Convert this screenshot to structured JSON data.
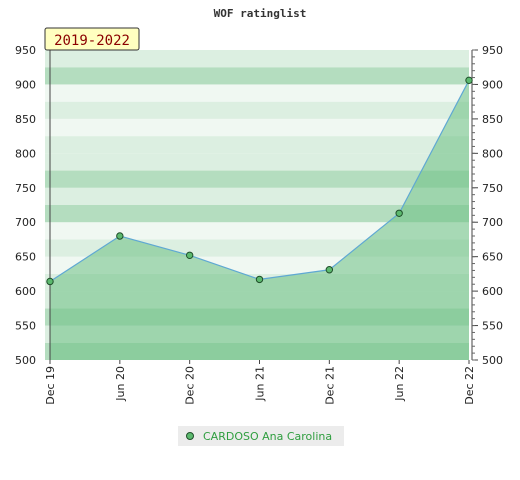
{
  "chart_data": {
    "type": "area",
    "title": "WOF ratinglist",
    "period_label": "2019-2022",
    "categories": [
      "Dec 19",
      "Jun 20",
      "Dec 20",
      "Jun 21",
      "Dec 21",
      "Jun 22",
      "Dec 22"
    ],
    "series": [
      {
        "name": "CARDOSO Ana Carolina",
        "values": [
          614,
          680,
          652,
          617,
          631,
          713,
          906
        ]
      }
    ],
    "y_ticks": [
      500,
      550,
      600,
      650,
      700,
      750,
      800,
      850,
      900,
      950
    ],
    "ylim": [
      500,
      950
    ],
    "legend_position": "bottom",
    "grid": "horizontal bands",
    "colors": {
      "line": "#5fa8d3",
      "area": "#6cc083",
      "marker_fill": "#5cb96e",
      "marker_stroke": "#1f4f2a",
      "band_dark": "#b4ddbf",
      "band_light": "#dcefe1",
      "band_pale": "#f0f8f2",
      "period_box": "#ffffc0",
      "legend_text": "#2f9e3f"
    }
  }
}
